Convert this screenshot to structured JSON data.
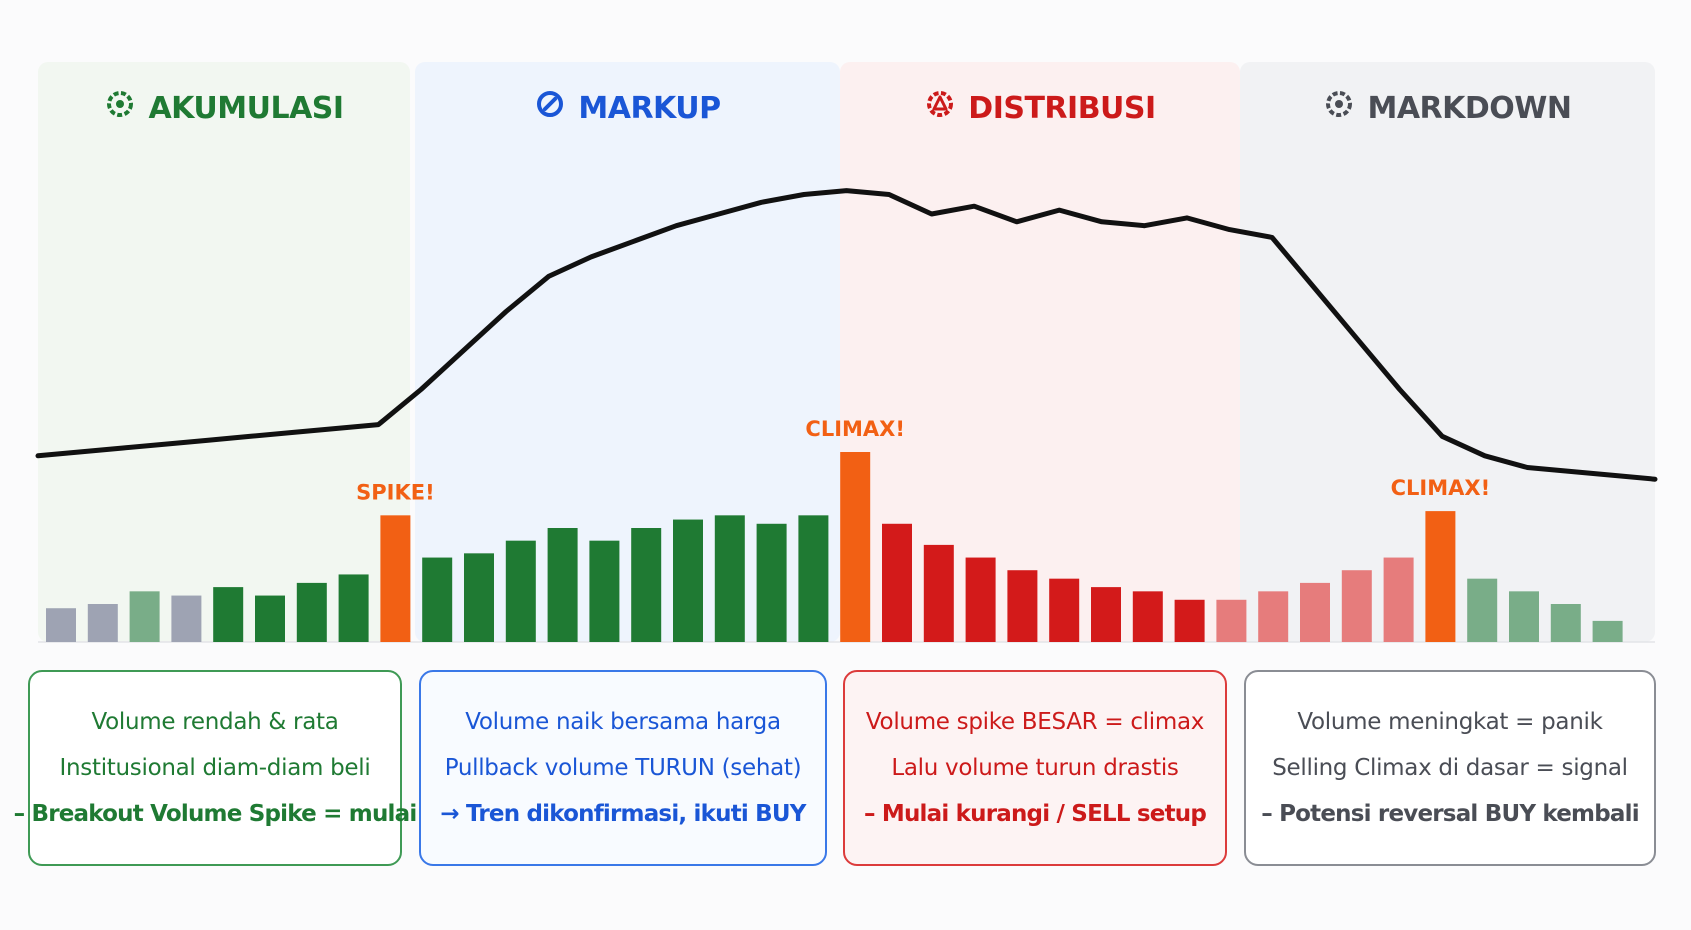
{
  "phases": [
    {
      "key": "akumulasi",
      "title": "AKUMULASI",
      "icon": "gear-icon",
      "color": "#1f7a33",
      "panel_bg": "#f2f7f1",
      "card_bg": "#ffffff",
      "card_border": "#3f9a55",
      "lines": [
        "Volume rendah & rata",
        "Institusional diam-diam beli",
        "– Breakout Volume Spike = mulai"
      ]
    },
    {
      "key": "markup",
      "title": "MARKUP",
      "icon": "gauge-icon",
      "color": "#1a56d6",
      "panel_bg": "#eef4fd",
      "card_bg": "#f8fbff",
      "card_border": "#3a78e8",
      "lines": [
        "Volume naik bersama harga",
        "Pullback volume TURUN (sehat)",
        "→ Tren dikonfirmasi, ikuti BUY"
      ]
    },
    {
      "key": "distribusi",
      "title": "DISTRIBUSI",
      "icon": "warning-gear-icon",
      "color": "#cc1a1a",
      "panel_bg": "#fcf0f0",
      "card_bg": "#fdf3f3",
      "card_border": "#dc3b3b",
      "lines": [
        "Volume spike BESAR = climax",
        "Lalu volume turun drastis",
        "– Mulai kurangi / SELL setup"
      ]
    },
    {
      "key": "markdown",
      "title": "MARKDOWN",
      "icon": "gear-icon",
      "color": "#4a4d55",
      "panel_bg": "#f1f2f4",
      "card_bg": "#ffffff",
      "card_border": "#8a8d94",
      "lines": [
        "Volume meningkat = panik",
        "Selling Climax di dasar = signal",
        "– Potensi reversal BUY kembali"
      ]
    }
  ],
  "chart_data": {
    "type": "bar",
    "title": "",
    "xlabel": "",
    "ylabel": "",
    "grid": false,
    "bars": [
      {
        "phase": "akumulasi",
        "value": 8,
        "color": "#9ea3b3"
      },
      {
        "phase": "akumulasi",
        "value": 9,
        "color": "#9ea3b3"
      },
      {
        "phase": "akumulasi",
        "value": 12,
        "color": "#79ad88"
      },
      {
        "phase": "akumulasi",
        "value": 11,
        "color": "#9ea3b3"
      },
      {
        "phase": "akumulasi",
        "value": 13,
        "color": "#1f7a33"
      },
      {
        "phase": "akumulasi",
        "value": 11,
        "color": "#1f7a33"
      },
      {
        "phase": "akumulasi",
        "value": 14,
        "color": "#1f7a33"
      },
      {
        "phase": "akumulasi",
        "value": 16,
        "color": "#1f7a33"
      },
      {
        "phase": "akumulasi",
        "value": 30,
        "color": "#f26014",
        "label": "SPIKE!"
      },
      {
        "phase": "markup",
        "value": 20,
        "color": "#1f7a33"
      },
      {
        "phase": "markup",
        "value": 21,
        "color": "#1f7a33"
      },
      {
        "phase": "markup",
        "value": 24,
        "color": "#1f7a33"
      },
      {
        "phase": "markup",
        "value": 27,
        "color": "#1f7a33"
      },
      {
        "phase": "markup",
        "value": 24,
        "color": "#1f7a33"
      },
      {
        "phase": "markup",
        "value": 27,
        "color": "#1f7a33"
      },
      {
        "phase": "markup",
        "value": 29,
        "color": "#1f7a33"
      },
      {
        "phase": "markup",
        "value": 30,
        "color": "#1f7a33"
      },
      {
        "phase": "markup",
        "value": 28,
        "color": "#1f7a33"
      },
      {
        "phase": "markup",
        "value": 30,
        "color": "#1f7a33"
      },
      {
        "phase": "distribusi",
        "value": 45,
        "color": "#f26014",
        "label": "CLIMAX!"
      },
      {
        "phase": "distribusi",
        "value": 28,
        "color": "#d31a1a"
      },
      {
        "phase": "distribusi",
        "value": 23,
        "color": "#d31a1a"
      },
      {
        "phase": "distribusi",
        "value": 20,
        "color": "#d31a1a"
      },
      {
        "phase": "distribusi",
        "value": 17,
        "color": "#d31a1a"
      },
      {
        "phase": "distribusi",
        "value": 15,
        "color": "#d31a1a"
      },
      {
        "phase": "distribusi",
        "value": 13,
        "color": "#d31a1a"
      },
      {
        "phase": "distribusi",
        "value": 12,
        "color": "#d31a1a"
      },
      {
        "phase": "distribusi",
        "value": 10,
        "color": "#d31a1a"
      },
      {
        "phase": "markdown",
        "value": 10,
        "color": "#e67c7c"
      },
      {
        "phase": "markdown",
        "value": 12,
        "color": "#e67c7c"
      },
      {
        "phase": "markdown",
        "value": 14,
        "color": "#e67c7c"
      },
      {
        "phase": "markdown",
        "value": 17,
        "color": "#e67c7c"
      },
      {
        "phase": "markdown",
        "value": 20,
        "color": "#e67c7c"
      },
      {
        "phase": "markdown",
        "value": 31,
        "color": "#f26014",
        "label": "CLIMAX!"
      },
      {
        "phase": "markdown",
        "value": 15,
        "color": "#79ad88"
      },
      {
        "phase": "markdown",
        "value": 12,
        "color": "#79ad88"
      },
      {
        "phase": "markdown",
        "value": 9,
        "color": "#79ad88"
      },
      {
        "phase": "markdown",
        "value": 5,
        "color": "#79ad88"
      }
    ],
    "price_line": [
      [
        0,
        28
      ],
      [
        1,
        29
      ],
      [
        2,
        30
      ],
      [
        3,
        31
      ],
      [
        4,
        32
      ],
      [
        5,
        33
      ],
      [
        6,
        34
      ],
      [
        7,
        35
      ],
      [
        8,
        36
      ],
      [
        9,
        45
      ],
      [
        10,
        55
      ],
      [
        11,
        65
      ],
      [
        12,
        74
      ],
      [
        13,
        79
      ],
      [
        14,
        83
      ],
      [
        15,
        87
      ],
      [
        16,
        90
      ],
      [
        17,
        93
      ],
      [
        18,
        95
      ],
      [
        19,
        96
      ],
      [
        20,
        95
      ],
      [
        21,
        90
      ],
      [
        22,
        92
      ],
      [
        23,
        88
      ],
      [
        24,
        91
      ],
      [
        25,
        88
      ],
      [
        26,
        87
      ],
      [
        27,
        89
      ],
      [
        28,
        86
      ],
      [
        29,
        84
      ],
      [
        30,
        71
      ],
      [
        31,
        58
      ],
      [
        32,
        45
      ],
      [
        33,
        33
      ],
      [
        34,
        28
      ],
      [
        35,
        25
      ],
      [
        36,
        24
      ],
      [
        37,
        23
      ],
      [
        38,
        22
      ]
    ],
    "annotation_color": "#f26014",
    "line_color": "#111111"
  }
}
